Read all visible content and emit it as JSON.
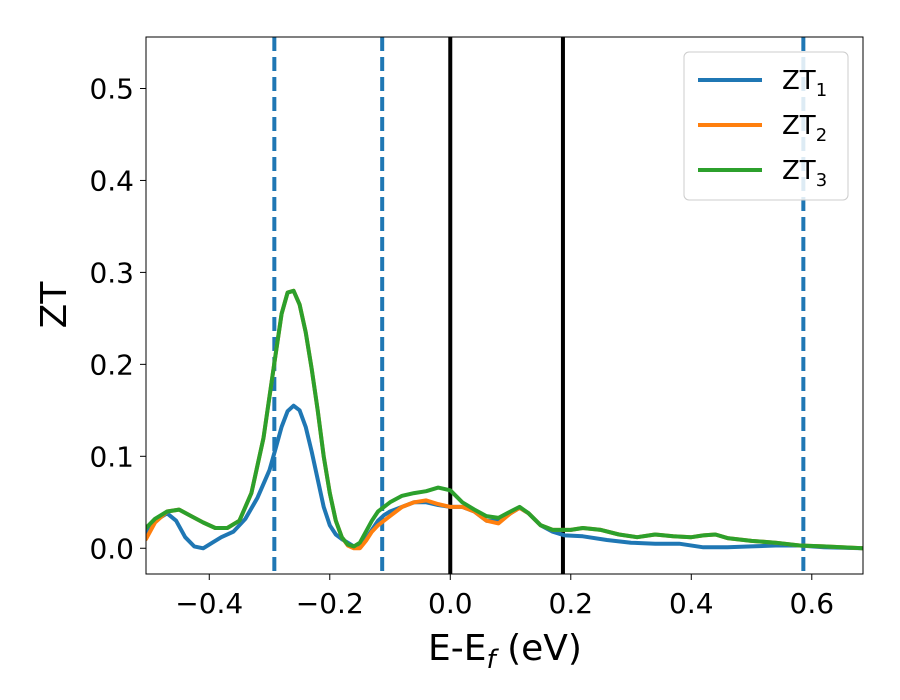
{
  "chart_data": {
    "type": "line",
    "xlabel_main": "E-E",
    "xlabel_sub": "f",
    "xlabel_suffix": " (eV)",
    "ylabel": "ZT",
    "xlim": [
      -0.505,
      0.685
    ],
    "ylim": [
      -0.028,
      0.556
    ],
    "x_ticks": [
      -0.4,
      -0.2,
      0.0,
      0.2,
      0.4,
      0.6
    ],
    "x_tick_labels": [
      "−0.4",
      "−0.2",
      "0.0",
      "0.2",
      "0.4",
      "0.6"
    ],
    "y_ticks": [
      0.0,
      0.1,
      0.2,
      0.3,
      0.4,
      0.5
    ],
    "y_tick_labels": [
      "0.0",
      "0.1",
      "0.2",
      "0.3",
      "0.4",
      "0.5"
    ],
    "grid": false,
    "legend_position": "upper right",
    "series": [
      {
        "name": "ZT",
        "subscript": "1",
        "color": "#1f77b4",
        "x": [
          -0.505,
          -0.49,
          -0.47,
          -0.455,
          -0.44,
          -0.425,
          -0.41,
          -0.395,
          -0.38,
          -0.36,
          -0.34,
          -0.32,
          -0.3,
          -0.29,
          -0.28,
          -0.27,
          -0.26,
          -0.25,
          -0.24,
          -0.23,
          -0.22,
          -0.21,
          -0.2,
          -0.19,
          -0.18,
          -0.17,
          -0.16,
          -0.15,
          -0.14,
          -0.13,
          -0.12,
          -0.11,
          -0.1,
          -0.08,
          -0.06,
          -0.04,
          -0.02,
          0.0,
          0.02,
          0.04,
          0.06,
          0.08,
          0.1,
          0.115,
          0.13,
          0.15,
          0.17,
          0.19,
          0.22,
          0.26,
          0.3,
          0.34,
          0.38,
          0.42,
          0.46,
          0.5,
          0.54,
          0.58,
          0.62,
          0.685
        ],
        "y": [
          0.015,
          0.03,
          0.038,
          0.03,
          0.012,
          0.002,
          0.0,
          0.006,
          0.012,
          0.018,
          0.032,
          0.055,
          0.085,
          0.108,
          0.132,
          0.149,
          0.155,
          0.15,
          0.132,
          0.105,
          0.075,
          0.045,
          0.025,
          0.015,
          0.01,
          0.006,
          0.002,
          0.003,
          0.01,
          0.02,
          0.03,
          0.036,
          0.04,
          0.045,
          0.05,
          0.05,
          0.047,
          0.045,
          0.045,
          0.04,
          0.03,
          0.03,
          0.038,
          0.044,
          0.038,
          0.025,
          0.018,
          0.014,
          0.013,
          0.009,
          0.006,
          0.005,
          0.005,
          0.001,
          0.001,
          0.002,
          0.003,
          0.003,
          0.001,
          0.0
        ]
      },
      {
        "name": "ZT",
        "subscript": "2",
        "color": "#ff7f0e",
        "x": [
          -0.505,
          -0.49,
          -0.47,
          -0.45,
          -0.43,
          -0.41,
          -0.39,
          -0.37,
          -0.35,
          -0.33,
          -0.31,
          -0.3,
          -0.29,
          -0.28,
          -0.27,
          -0.26,
          -0.25,
          -0.24,
          -0.23,
          -0.22,
          -0.21,
          -0.2,
          -0.19,
          -0.18,
          -0.17,
          -0.16,
          -0.15,
          -0.14,
          -0.13,
          -0.12,
          -0.11,
          -0.1,
          -0.08,
          -0.06,
          -0.04,
          -0.02,
          0.0,
          0.02,
          0.04,
          0.06,
          0.08,
          0.1,
          0.115,
          0.13,
          0.15,
          0.17,
          0.2,
          0.22,
          0.25,
          0.28,
          0.31,
          0.34,
          0.37,
          0.4,
          0.42,
          0.44,
          0.46,
          0.5,
          0.54,
          0.58,
          0.62,
          0.685
        ],
        "y": [
          0.01,
          0.028,
          0.04,
          0.042,
          0.035,
          0.028,
          0.022,
          0.022,
          0.03,
          0.06,
          0.12,
          0.165,
          0.21,
          0.255,
          0.278,
          0.28,
          0.265,
          0.235,
          0.195,
          0.15,
          0.1,
          0.06,
          0.03,
          0.012,
          0.003,
          0.0,
          0.0,
          0.008,
          0.018,
          0.025,
          0.03,
          0.035,
          0.045,
          0.05,
          0.052,
          0.048,
          0.045,
          0.045,
          0.04,
          0.03,
          0.027,
          0.038,
          0.044,
          0.038,
          0.025,
          0.02,
          0.02,
          0.022,
          0.02,
          0.015,
          0.012,
          0.015,
          0.013,
          0.012,
          0.014,
          0.015,
          0.011,
          0.008,
          0.006,
          0.003,
          0.002,
          0.0
        ]
      },
      {
        "name": "ZT",
        "subscript": "3",
        "color": "#2ca02c",
        "x": [
          -0.505,
          -0.49,
          -0.47,
          -0.45,
          -0.43,
          -0.41,
          -0.39,
          -0.37,
          -0.35,
          -0.33,
          -0.31,
          -0.3,
          -0.29,
          -0.28,
          -0.27,
          -0.26,
          -0.25,
          -0.24,
          -0.23,
          -0.22,
          -0.21,
          -0.2,
          -0.19,
          -0.18,
          -0.17,
          -0.16,
          -0.15,
          -0.14,
          -0.13,
          -0.12,
          -0.11,
          -0.1,
          -0.08,
          -0.06,
          -0.04,
          -0.02,
          0.0,
          0.02,
          0.04,
          0.06,
          0.08,
          0.1,
          0.115,
          0.13,
          0.15,
          0.17,
          0.2,
          0.22,
          0.25,
          0.28,
          0.31,
          0.34,
          0.37,
          0.4,
          0.42,
          0.44,
          0.46,
          0.5,
          0.54,
          0.58,
          0.62,
          0.685
        ],
        "y": [
          0.022,
          0.032,
          0.04,
          0.042,
          0.035,
          0.028,
          0.022,
          0.022,
          0.03,
          0.06,
          0.12,
          0.165,
          0.21,
          0.255,
          0.278,
          0.28,
          0.265,
          0.235,
          0.195,
          0.15,
          0.1,
          0.06,
          0.03,
          0.012,
          0.004,
          0.002,
          0.006,
          0.018,
          0.03,
          0.04,
          0.045,
          0.05,
          0.057,
          0.06,
          0.062,
          0.066,
          0.063,
          0.05,
          0.042,
          0.035,
          0.033,
          0.04,
          0.045,
          0.038,
          0.025,
          0.02,
          0.02,
          0.022,
          0.02,
          0.015,
          0.012,
          0.015,
          0.013,
          0.012,
          0.014,
          0.015,
          0.011,
          0.008,
          0.006,
          0.003,
          0.002,
          0.0
        ]
      }
    ],
    "vertical_lines": [
      {
        "x": -0.292,
        "style": "dashed",
        "color": "#1f77b4"
      },
      {
        "x": -0.113,
        "style": "dashed",
        "color": "#1f77b4"
      },
      {
        "x": 0.0,
        "style": "solid",
        "color": "#000000"
      },
      {
        "x": 0.187,
        "style": "solid",
        "color": "#000000"
      },
      {
        "x": 0.586,
        "style": "dashed",
        "color": "#1f77b4"
      }
    ]
  }
}
